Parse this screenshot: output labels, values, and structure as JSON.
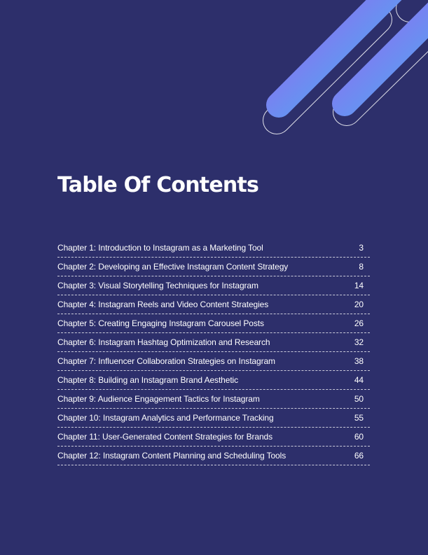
{
  "title": "Table Of Contents",
  "toc": [
    {
      "chapter": "Chapter 1: Introduction to Instagram as a Marketing Tool",
      "page": "3"
    },
    {
      "chapter": "Chapter 2: Developing an Effective Instagram Content Strategy",
      "page": "8"
    },
    {
      "chapter": "Chapter 3: Visual Storytelling Techniques for Instagram",
      "page": "14"
    },
    {
      "chapter": "Chapter 4: Instagram Reels and Video Content Strategies",
      "page": "20"
    },
    {
      "chapter": "Chapter 5: Creating Engaging Instagram Carousel Posts",
      "page": "26"
    },
    {
      "chapter": "Chapter 6: Instagram Hashtag Optimization and Research",
      "page": "32"
    },
    {
      "chapter": "Chapter 7: Influencer Collaboration Strategies on Instagram",
      "page": "38"
    },
    {
      "chapter": "Chapter 8: Building an Instagram Brand Aesthetic",
      "page": "44"
    },
    {
      "chapter": "Chapter 9: Audience Engagement Tactics for Instagram",
      "page": "50"
    },
    {
      "chapter": "Chapter 10: Instagram Analytics and Performance Tracking",
      "page": "55"
    },
    {
      "chapter": "Chapter 11: User-Generated Content Strategies for Brands",
      "page": "60"
    },
    {
      "chapter": "Chapter 12: Instagram Content Planning and Scheduling Tools",
      "page": "66"
    }
  ],
  "colors": {
    "background": "#2d2f6b",
    "gradient_start": "#a05cf2",
    "gradient_end": "#3fb8f0"
  }
}
